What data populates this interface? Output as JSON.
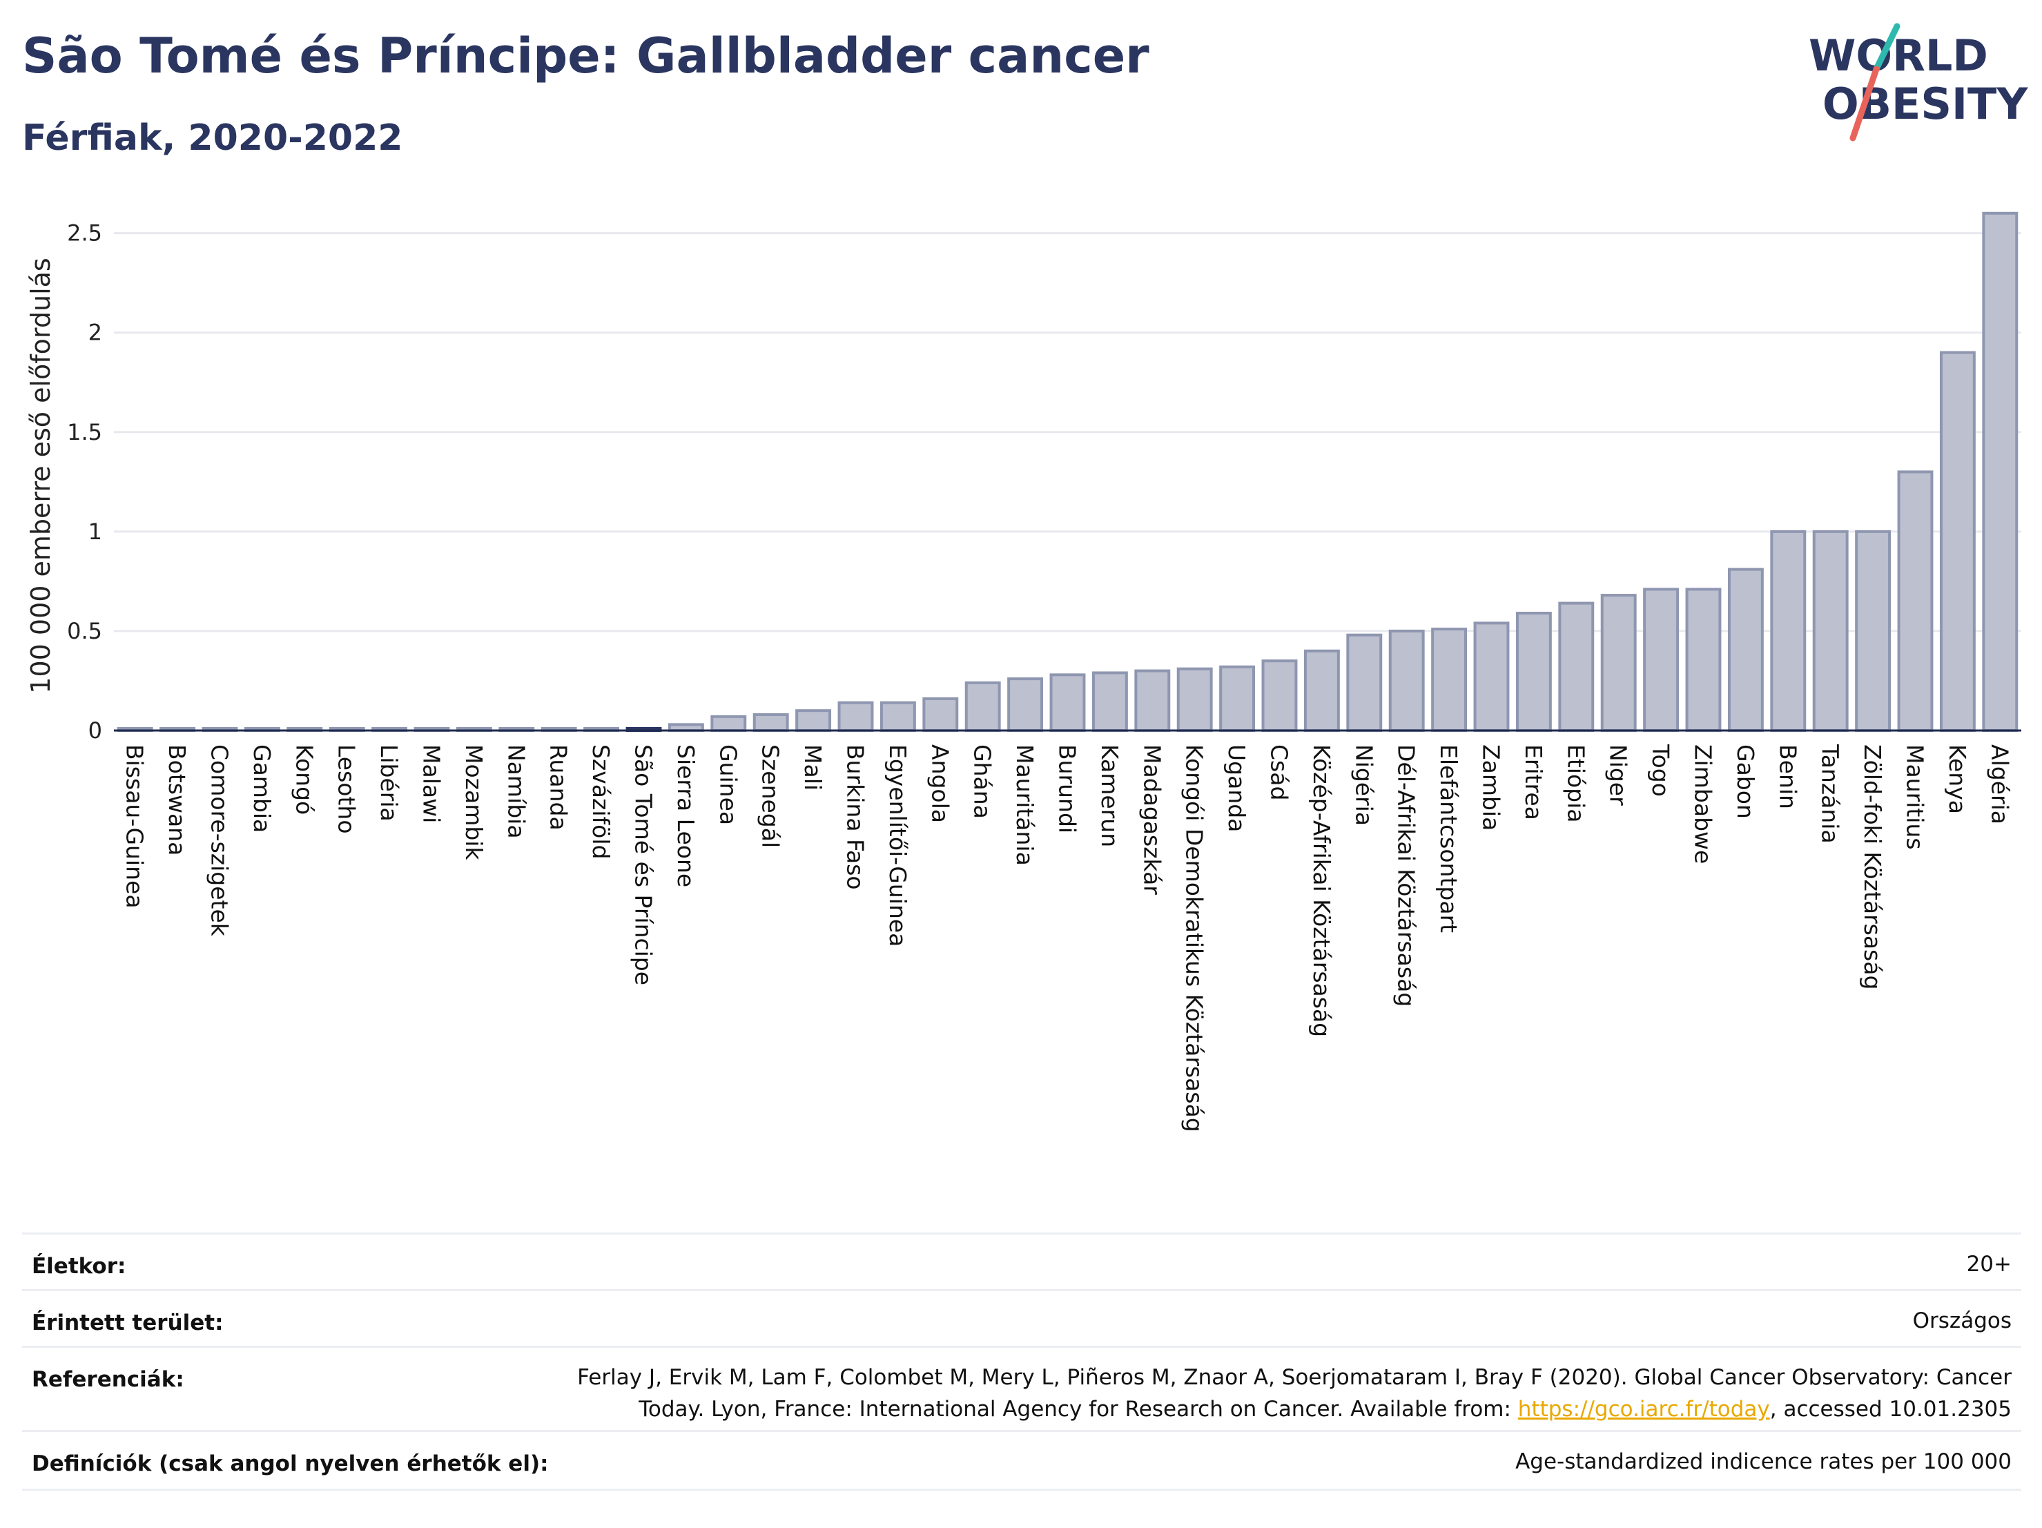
{
  "header": {
    "title": "São Tomé és Príncipe: Gallbladder cancer",
    "subtitle": "Férfiak, 2020-2022"
  },
  "logo": {
    "line1": "WORLD",
    "line2": "OBESITY"
  },
  "chart_data": {
    "type": "bar",
    "ylabel": "100 000 emberre eső előfordulás",
    "ylim": [
      0,
      2.7
    ],
    "yticks": [
      0,
      0.5,
      1,
      1.5,
      2,
      2.5
    ],
    "ytick_labels": [
      "0",
      "0.5",
      "1",
      "1.5",
      "2",
      "2.5"
    ],
    "grid": true,
    "highlight": "São Tomé és Príncipe",
    "colors": {
      "bar": "#bcc0cf",
      "bar_edge": "#8f96b0",
      "highlight": "#2a3560",
      "grid": "#e8e9ee",
      "axis": "#1e2a4f"
    },
    "categories": [
      "Bissau-Guinea",
      "Botswana",
      "Comore-szigetek",
      "Gambia",
      "Kongó",
      "Lesotho",
      "Libéria",
      "Malawi",
      "Mozambik",
      "Namíbia",
      "Ruanda",
      "Szváziföld",
      "São Tomé és Príncipe",
      "Sierra Leone",
      "Guinea",
      "Szenegál",
      "Mali",
      "Burkina Faso",
      "Egyenlítői-Guinea",
      "Angola",
      "Ghána",
      "Mauritánia",
      "Burundi",
      "Kamerun",
      "Madagaszkár",
      "Kongói Demokratikus Köztársaság",
      "Uganda",
      "Csád",
      "Közép-Afrikai Köztársaság",
      "Nigéria",
      "Dél-Afrikai Köztársaság",
      "Elefántcsontpart",
      "Zambia",
      "Eritrea",
      "Etiópia",
      "Niger",
      "Togo",
      "Zimbabwe",
      "Gabon",
      "Benin",
      "Tanzánia",
      "Zöld-foki Köztársaság",
      "Mauritius",
      "Kenya",
      "Algéria"
    ],
    "values": [
      0.01,
      0.01,
      0.01,
      0.01,
      0.01,
      0.01,
      0.01,
      0.01,
      0.01,
      0.01,
      0.01,
      0.01,
      0.01,
      0.03,
      0.07,
      0.08,
      0.1,
      0.14,
      0.14,
      0.16,
      0.24,
      0.26,
      0.28,
      0.29,
      0.3,
      0.31,
      0.32,
      0.35,
      0.4,
      0.48,
      0.5,
      0.51,
      0.54,
      0.59,
      0.64,
      0.68,
      0.71,
      0.71,
      0.81,
      1.0,
      1.0,
      1.0,
      1.3,
      1.9,
      2.6
    ]
  },
  "info": {
    "age_label": "Életkor:",
    "age_value": "20+",
    "area_label": "Érintett terület:",
    "area_value": "Országos",
    "ref_label": "Referenciák:",
    "ref_line1": "Ferlay J, Ervik M, Lam F, Colombet M, Mery L, Piñeros M, Znaor A, Soerjomataram I, Bray F (2020). Global Cancer Observatory: Cancer",
    "ref_line2_pre": "Today. Lyon, France: International Agency for Research on Cancer. Available from: ",
    "ref_link": "https://gco.iarc.fr/today",
    "ref_line2_post": ", accessed 10.01.2305",
    "def_label": "Definíciók (csak angol nyelven érhetők el):",
    "def_value": "Age-standardized indicence rates per 100 000"
  }
}
